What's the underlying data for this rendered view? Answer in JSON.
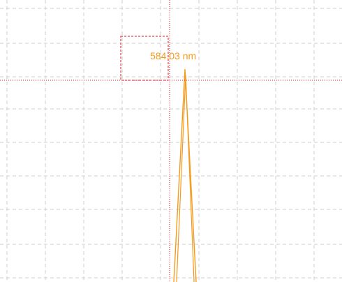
{
  "annotation": "584.03 nm"
}
